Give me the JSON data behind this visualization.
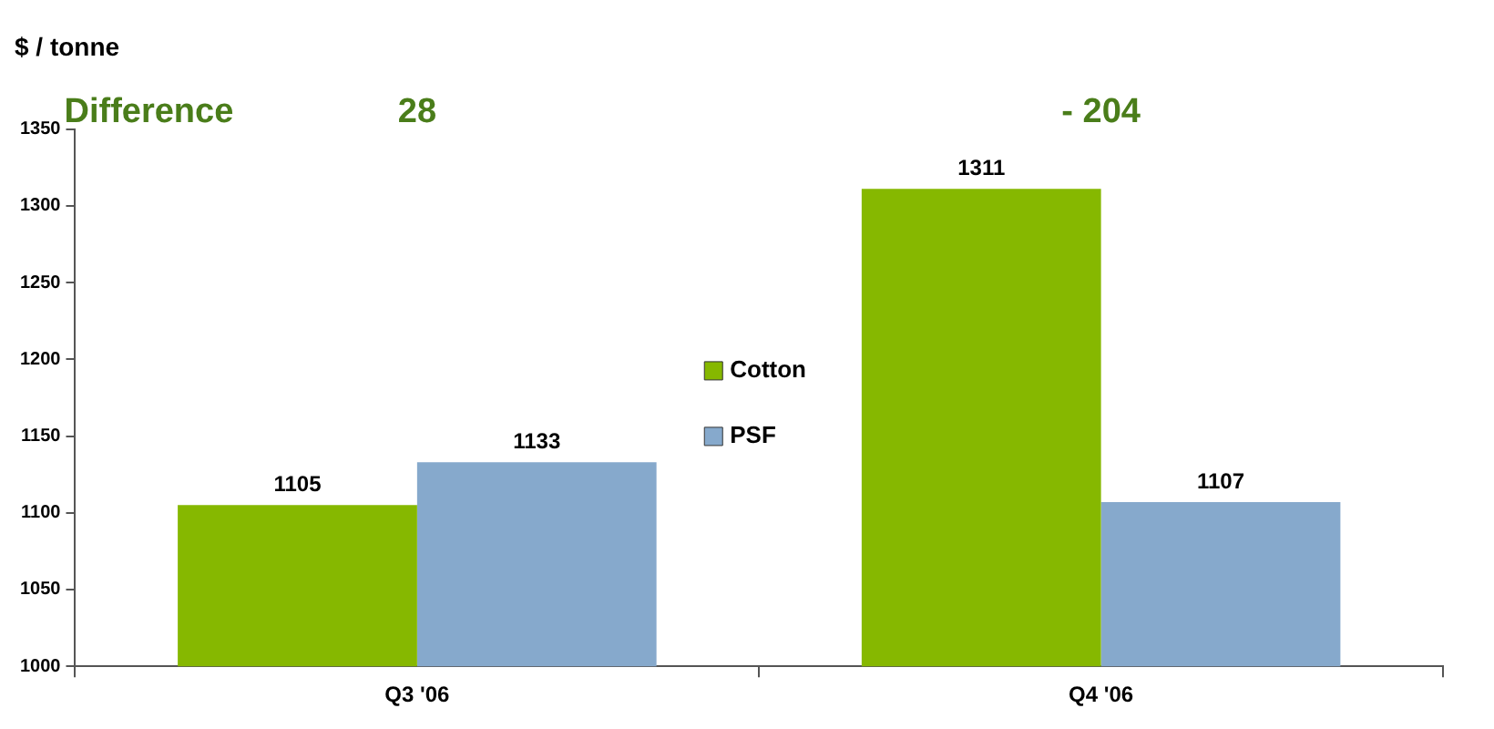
{
  "chart_data": {
    "type": "bar",
    "title": "$ / tonne",
    "categories": [
      "Q3 '06",
      "Q4 '06"
    ],
    "series": [
      {
        "name": "Cotton",
        "color": "#86b800",
        "values": [
          1105,
          1311
        ]
      },
      {
        "name": "PSF",
        "color": "#86a9cc",
        "values": [
          1133,
          1107
        ]
      }
    ],
    "ylim": [
      1000,
      1350
    ],
    "yticks": [
      1000,
      1050,
      1100,
      1150,
      1200,
      1250,
      1300,
      1350
    ],
    "grid": false,
    "legend": "center",
    "data_labels": true,
    "annotations": [
      "Difference",
      "28",
      "- 204"
    ]
  }
}
